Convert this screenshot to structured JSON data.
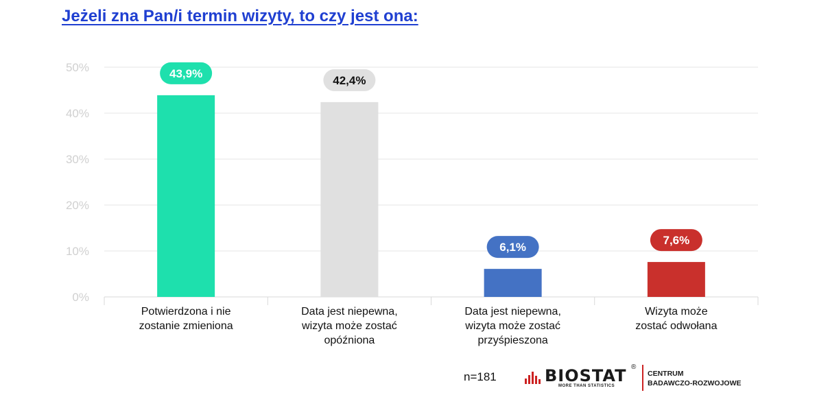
{
  "title": "Jeżeli zna Pan/i termin wizyty, to czy jest ona:",
  "n_label": "n=181",
  "logo": {
    "name": "BIOSTAT",
    "registered": "®",
    "tagline": "MORE THAN STATISTICS",
    "centrum_line1": "CENTRUM",
    "centrum_line2": "BADAWCZO-ROZWOJOWE"
  },
  "chart_data": {
    "type": "bar",
    "categories": [
      "Potwierdzona i nie\nzostanie zmieniona",
      "Data jest niepewna,\nwizyta może zostać\nopóźniona",
      "Data jest niepewna,\nwizyta może zostać\nprzyśpieszona",
      "Wizyta może\nzostać odwołana"
    ],
    "values": [
      43.9,
      42.4,
      6.1,
      7.6
    ],
    "data_labels": [
      "43,9%",
      "42,4%",
      "6,1%",
      "7,6%"
    ],
    "colors": [
      "#1ee0ad",
      "#e0e0e0",
      "#4472c4",
      "#c9302c"
    ],
    "label_text_colors": [
      "#ffffff",
      "#111111",
      "#ffffff",
      "#ffffff"
    ],
    "ylim": [
      0,
      50
    ],
    "yticks": [
      "0%",
      "10%",
      "20%",
      "30%",
      "40%",
      "50%"
    ],
    "grid": true
  }
}
